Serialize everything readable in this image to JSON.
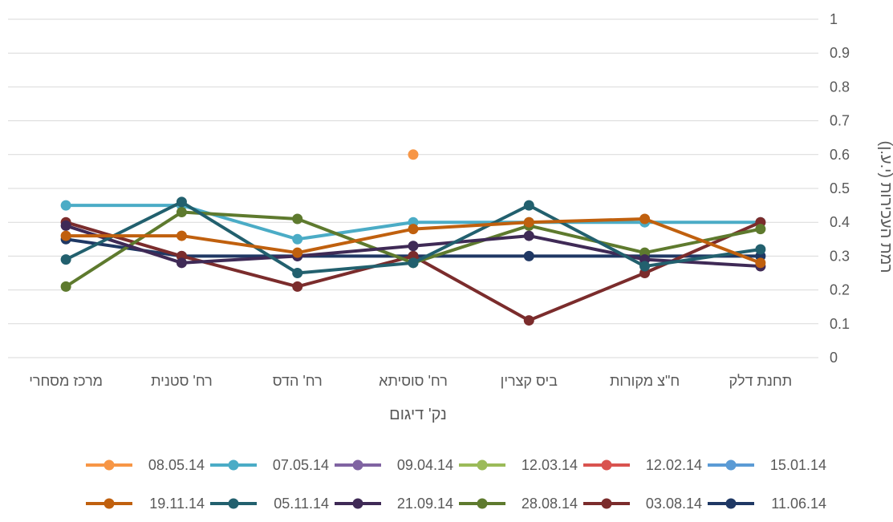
{
  "chart_data": {
    "type": "line",
    "title": "",
    "xlabel": "נק' דיגום",
    "ylabel": "רמת העכירות (י.ע.ן)",
    "ylim": [
      0,
      1
    ],
    "yticks": [
      "0",
      "0.1",
      "0.2",
      "0.3",
      "0.4",
      "0.5",
      "0.6",
      "0.7",
      "0.8",
      "0.9",
      "1"
    ],
    "y_axis_side": "right",
    "x_reversed": true,
    "grid": true,
    "legend_position": "bottom",
    "categories": [
      "תחנת דלק",
      "ח\"צ מקורות",
      "ביס קצרין",
      "רח' סוסיתא",
      "רח' הדס",
      "רח' סטנית",
      "מרכז מסחרי"
    ],
    "series": [
      {
        "name": "15.01.14",
        "color": "#5b9bd5",
        "values": [
          null,
          null,
          null,
          null,
          null,
          null,
          null
        ]
      },
      {
        "name": "12.02.14",
        "color": "#d9534f",
        "values": [
          null,
          null,
          null,
          null,
          null,
          null,
          null
        ]
      },
      {
        "name": "12.03.14",
        "color": "#9bbb59",
        "values": [
          null,
          null,
          null,
          null,
          null,
          null,
          null
        ]
      },
      {
        "name": "09.04.14",
        "color": "#8064a2",
        "values": [
          null,
          null,
          null,
          null,
          null,
          null,
          null
        ]
      },
      {
        "name": "07.05.14",
        "color": "#4bacc6",
        "values": [
          0.4,
          0.4,
          0.4,
          0.4,
          0.35,
          0.45,
          0.45
        ]
      },
      {
        "name": "08.05.14",
        "color": "#f79646",
        "values": [
          null,
          null,
          null,
          0.6,
          null,
          null,
          null
        ]
      },
      {
        "name": "11.06.14",
        "color": "#1f3864",
        "values": [
          0.3,
          0.3,
          0.3,
          0.3,
          0.3,
          0.3,
          0.35
        ]
      },
      {
        "name": "03.08.14",
        "color": "#7b2c2c",
        "values": [
          0.4,
          0.25,
          0.11,
          0.3,
          0.21,
          0.3,
          0.4
        ]
      },
      {
        "name": "28.08.14",
        "color": "#5e7a2e",
        "values": [
          0.38,
          0.31,
          0.39,
          0.28,
          0.41,
          0.43,
          0.21
        ]
      },
      {
        "name": "21.09.14",
        "color": "#3f2a56",
        "values": [
          0.27,
          0.29,
          0.36,
          0.33,
          0.3,
          0.28,
          0.39
        ]
      },
      {
        "name": "05.11.14",
        "color": "#22606e",
        "values": [
          0.32,
          0.27,
          0.45,
          0.28,
          0.25,
          0.46,
          0.29
        ]
      },
      {
        "name": "19.11.14",
        "color": "#c0600e",
        "values": [
          0.28,
          0.41,
          0.4,
          0.38,
          0.31,
          0.36,
          0.36
        ]
      }
    ]
  }
}
